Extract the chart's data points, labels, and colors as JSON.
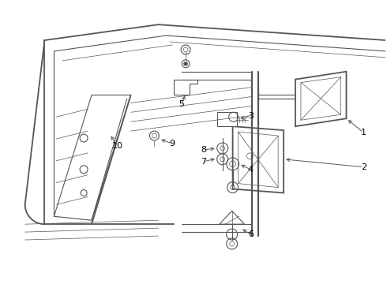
{
  "background_color": "#ffffff",
  "line_color": "#555555",
  "label_color": "#000000",
  "lw_main": 1.3,
  "lw_thin": 0.8,
  "lw_very_thin": 0.5
}
